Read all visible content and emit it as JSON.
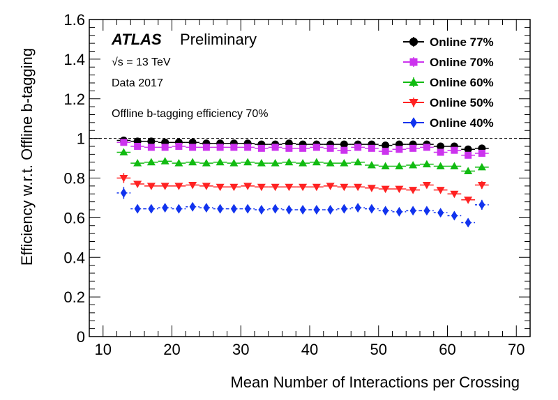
{
  "chart_data": {
    "type": "scatter",
    "xlabel": "Mean Number of Interactions per Crossing",
    "ylabel": "Efficiency w.r.t. Offline b-tagging",
    "xlim": [
      8,
      72
    ],
    "ylim": [
      0,
      1.6
    ],
    "x_ticks": [
      10,
      20,
      30,
      40,
      50,
      60,
      70
    ],
    "y_ticks": [
      0,
      0.2,
      0.4,
      0.6,
      0.8,
      1,
      1.2,
      1.4,
      1.6
    ],
    "y_tick_labels": [
      "0",
      "0.2",
      "0.4",
      "0.6",
      "0.8",
      "1",
      "1.2",
      "1.4",
      "1.6"
    ],
    "x_tick_labels": [
      "10",
      "20",
      "30",
      "40",
      "50",
      "60",
      "70"
    ],
    "reference_line": {
      "y": 1.0,
      "style": "dashed"
    },
    "grid": false,
    "legend_position": "top-right",
    "annotations": {
      "experiment": "ATLAS",
      "status": "Preliminary",
      "energy": "√s = 13 TeV",
      "dataset": "Data 2017",
      "note": "Offline b-tagging efficiency 70%"
    },
    "x": [
      13,
      15,
      17,
      19,
      21,
      23,
      25,
      27,
      29,
      31,
      33,
      35,
      37,
      39,
      41,
      43,
      45,
      47,
      49,
      51,
      53,
      55,
      57,
      59,
      61,
      63,
      65
    ],
    "series": [
      {
        "name": "Online 77%",
        "color": "#000000",
        "marker": "circle",
        "line": "solid",
        "values": [
          0.99,
          0.985,
          0.985,
          0.98,
          0.98,
          0.98,
          0.975,
          0.975,
          0.975,
          0.975,
          0.97,
          0.97,
          0.975,
          0.97,
          0.97,
          0.97,
          0.97,
          0.97,
          0.97,
          0.965,
          0.97,
          0.97,
          0.97,
          0.96,
          0.96,
          0.945,
          0.95
        ],
        "errors": [
          0.01,
          0.005,
          0.004,
          0.004,
          0.003,
          0.003,
          0.003,
          0.003,
          0.003,
          0.003,
          0.003,
          0.003,
          0.003,
          0.003,
          0.003,
          0.003,
          0.003,
          0.003,
          0.003,
          0.003,
          0.004,
          0.004,
          0.004,
          0.005,
          0.006,
          0.008,
          0.01
        ]
      },
      {
        "name": "Online 70%",
        "color": "#cc33ee",
        "marker": "square",
        "line": "solid",
        "values": [
          0.98,
          0.96,
          0.955,
          0.955,
          0.96,
          0.955,
          0.955,
          0.955,
          0.955,
          0.955,
          0.95,
          0.955,
          0.95,
          0.95,
          0.955,
          0.95,
          0.94,
          0.955,
          0.95,
          0.935,
          0.945,
          0.95,
          0.955,
          0.93,
          0.94,
          0.915,
          0.925
        ],
        "errors": [
          0.012,
          0.006,
          0.005,
          0.004,
          0.004,
          0.004,
          0.004,
          0.003,
          0.003,
          0.003,
          0.003,
          0.003,
          0.003,
          0.003,
          0.003,
          0.003,
          0.004,
          0.004,
          0.004,
          0.004,
          0.005,
          0.005,
          0.005,
          0.006,
          0.008,
          0.01,
          0.012
        ]
      },
      {
        "name": "Online 60%",
        "color": "#11bb11",
        "marker": "triangle-up",
        "line": "dashed",
        "values": [
          0.93,
          0.875,
          0.88,
          0.885,
          0.875,
          0.88,
          0.875,
          0.88,
          0.875,
          0.88,
          0.875,
          0.875,
          0.88,
          0.875,
          0.88,
          0.875,
          0.875,
          0.88,
          0.865,
          0.86,
          0.86,
          0.865,
          0.87,
          0.86,
          0.86,
          0.835,
          0.855
        ],
        "errors": [
          0.015,
          0.007,
          0.006,
          0.005,
          0.005,
          0.004,
          0.004,
          0.004,
          0.004,
          0.004,
          0.004,
          0.004,
          0.004,
          0.004,
          0.004,
          0.004,
          0.004,
          0.005,
          0.005,
          0.005,
          0.006,
          0.006,
          0.007,
          0.008,
          0.01,
          0.012,
          0.015
        ]
      },
      {
        "name": "Online 50%",
        "color": "#ff2222",
        "marker": "triangle-down",
        "line": "dashed",
        "values": [
          0.8,
          0.77,
          0.76,
          0.76,
          0.76,
          0.765,
          0.76,
          0.755,
          0.755,
          0.76,
          0.755,
          0.755,
          0.755,
          0.755,
          0.755,
          0.76,
          0.755,
          0.755,
          0.75,
          0.745,
          0.745,
          0.74,
          0.765,
          0.74,
          0.72,
          0.69,
          0.765
        ],
        "errors": [
          0.025,
          0.01,
          0.008,
          0.006,
          0.006,
          0.005,
          0.005,
          0.005,
          0.005,
          0.005,
          0.005,
          0.005,
          0.005,
          0.005,
          0.005,
          0.005,
          0.005,
          0.006,
          0.006,
          0.006,
          0.007,
          0.008,
          0.009,
          0.01,
          0.012,
          0.015,
          0.02
        ]
      },
      {
        "name": "Online 40%",
        "color": "#1133ee",
        "marker": "diamond",
        "line": "dotted",
        "values": [
          0.725,
          0.645,
          0.645,
          0.65,
          0.645,
          0.655,
          0.65,
          0.645,
          0.645,
          0.645,
          0.64,
          0.645,
          0.64,
          0.64,
          0.64,
          0.64,
          0.645,
          0.65,
          0.645,
          0.635,
          0.63,
          0.635,
          0.635,
          0.625,
          0.61,
          0.575,
          0.665
        ],
        "errors": [
          0.03,
          0.012,
          0.009,
          0.007,
          0.006,
          0.006,
          0.005,
          0.005,
          0.005,
          0.005,
          0.005,
          0.005,
          0.005,
          0.005,
          0.005,
          0.005,
          0.006,
          0.006,
          0.006,
          0.007,
          0.008,
          0.009,
          0.01,
          0.012,
          0.014,
          0.018,
          0.025
        ]
      }
    ]
  }
}
